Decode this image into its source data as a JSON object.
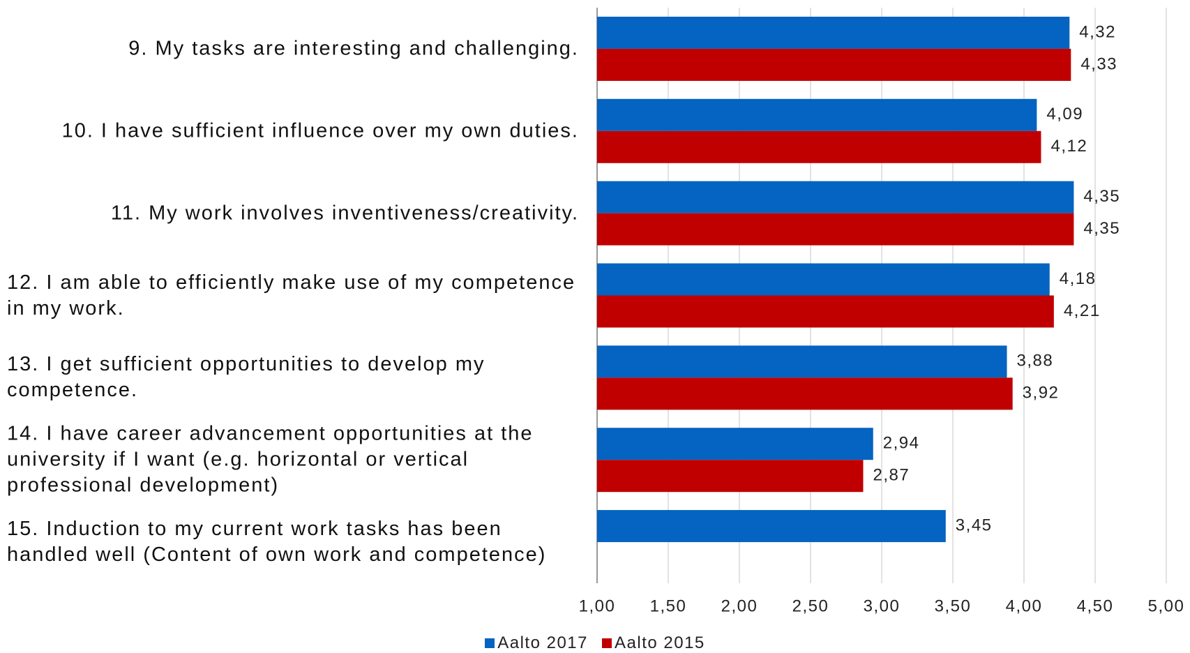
{
  "chart_data": {
    "type": "barh",
    "categories": [
      "9. My tasks are interesting and challenging.",
      "10. I have sufficient influence over my own duties.",
      "11. My work involves inventiveness/creativity.",
      "12. I am able to efficiently make use of my competence in my work.",
      "13. I get sufficient opportunities to develop my competence.",
      "14. I have career advancement opportunities at the university if I want (e.g. horizontal or vertical professional development)",
      "15. Induction to my current work tasks has been handled well (Content of own work and competence)"
    ],
    "series": [
      {
        "name": "Aalto 2017",
        "color": "#0563c1",
        "values": [
          4.32,
          4.09,
          4.35,
          4.18,
          3.88,
          2.94,
          3.45
        ],
        "value_labels": [
          "4,32",
          "4,09",
          "4,35",
          "4,18",
          "3,88",
          "2,94",
          "3,45"
        ]
      },
      {
        "name": "Aalto 2015",
        "color": "#c00000",
        "values": [
          4.33,
          4.12,
          4.35,
          4.21,
          3.92,
          2.87,
          null
        ],
        "value_labels": [
          "4,33",
          "4,12",
          "4,35",
          "4,21",
          "3,92",
          "2,87",
          null
        ]
      }
    ],
    "xlim": [
      1,
      5
    ],
    "xticks": [
      {
        "value": 1,
        "label": "1,00"
      },
      {
        "value": 1.5,
        "label": "1,50"
      },
      {
        "value": 2,
        "label": "2,00"
      },
      {
        "value": 2.5,
        "label": "2,50"
      },
      {
        "value": 3,
        "label": "3,00"
      },
      {
        "value": 3.5,
        "label": "3,50"
      },
      {
        "value": 4,
        "label": "4,00"
      },
      {
        "value": 4.5,
        "label": "4,50"
      },
      {
        "value": 5,
        "label": "5,00"
      }
    ],
    "grid": true,
    "legend": "bottom"
  }
}
